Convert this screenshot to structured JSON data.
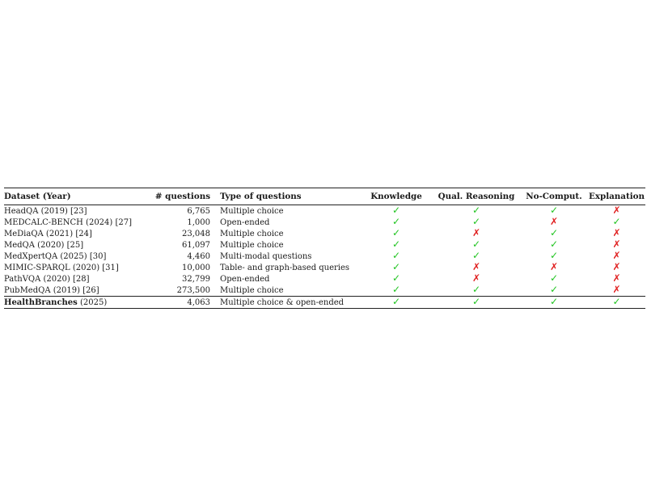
{
  "table": {
    "headers": {
      "dataset": "Dataset (Year)",
      "questions": "# questions",
      "type": "Type of questions",
      "knowledge": "Knowledge",
      "qual_reasoning": "Qual. Reasoning",
      "no_comput": "No-Comput.",
      "explanation": "Explanation"
    },
    "rows": [
      {
        "name": "HeadQA (2019) [23]",
        "questions": "6,765",
        "type": "Multiple choice",
        "knowledge": "✓",
        "qual_reasoning": "✓",
        "no_comput": "✓",
        "explanation": "✗"
      },
      {
        "name": "MEDCALC-BENCH (2024) [27]",
        "questions": "1,000",
        "type": "Open-ended",
        "knowledge": "✓",
        "qual_reasoning": "✓",
        "no_comput": "✗",
        "explanation": "✓"
      },
      {
        "name": "MeDiaQA (2021) [24]",
        "questions": "23,048",
        "type": "Multiple choice",
        "knowledge": "✓",
        "qual_reasoning": "✗",
        "no_comput": "✓",
        "explanation": "✗"
      },
      {
        "name": "MedQA (2020) [25]",
        "questions": "61,097",
        "type": "Multiple choice",
        "knowledge": "✓",
        "qual_reasoning": "✓",
        "no_comput": "✓",
        "explanation": "✗"
      },
      {
        "name": "MedXpertQA (2025) [30]",
        "questions": "4,460",
        "type": "Multi-modal questions",
        "knowledge": "✓",
        "qual_reasoning": "✓",
        "no_comput": "✓",
        "explanation": "✗"
      },
      {
        "name": "MIMIC-SPARQL (2020) [31]",
        "questions": "10,000",
        "type": "Table- and graph-based queries",
        "knowledge": "✓",
        "qual_reasoning": "✗",
        "no_comput": "✗",
        "explanation": "✗"
      },
      {
        "name": "PathVQA (2020) [28]",
        "questions": "32,799",
        "type": "Open-ended",
        "knowledge": "✓",
        "qual_reasoning": "✗",
        "no_comput": "✓",
        "explanation": "✗"
      },
      {
        "name": "PubMedQA (2019) [26]",
        "questions": "273,500",
        "type": "Multiple choice",
        "knowledge": "✓",
        "qual_reasoning": "✓",
        "no_comput": "✓",
        "explanation": "✗"
      }
    ],
    "highlight_row": {
      "name_bold": "HealthBranches",
      "name_year": " (2025)",
      "questions": "4,063",
      "type": "Multiple choice & open-ended",
      "knowledge": "✓",
      "qual_reasoning": "✓",
      "no_comput": "✓",
      "explanation": "✓"
    }
  },
  "colors": {
    "check": "#21c421",
    "cross": "#e02020"
  }
}
